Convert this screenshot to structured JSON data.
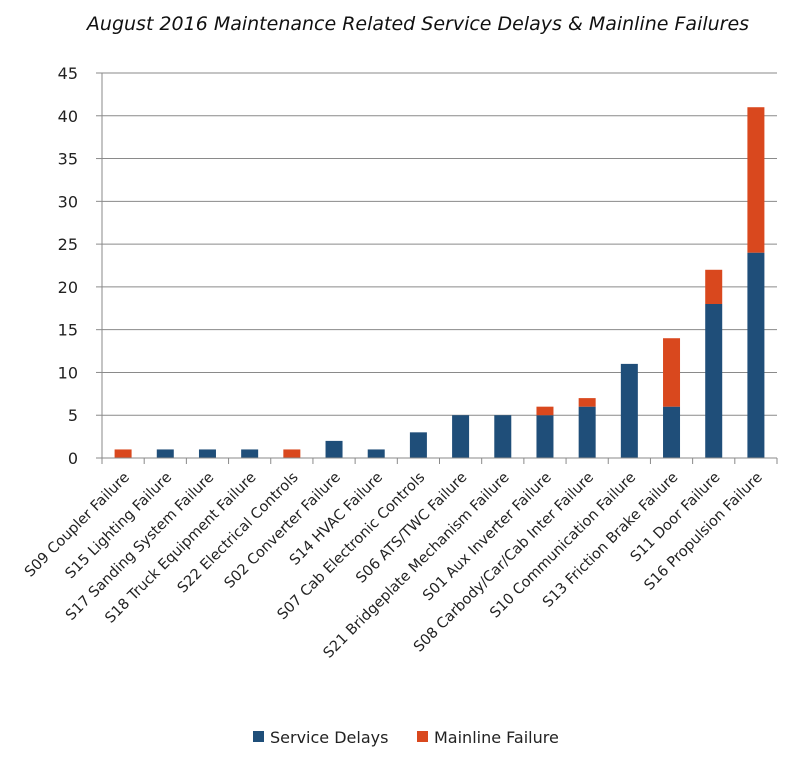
{
  "chart_data": {
    "type": "bar",
    "stacked": true,
    "title": "August 2016 Maintenance Related Service Delays & Mainline Failures",
    "xlabel": "",
    "ylabel": "",
    "ylim": [
      0,
      45
    ],
    "yticks": [
      0,
      5,
      10,
      15,
      20,
      25,
      30,
      35,
      40,
      45
    ],
    "grid": true,
    "legend": "bottom",
    "categories": [
      "S09 Coupler Failure",
      "S15 Lighting Failure",
      "S17 Sanding System Failure",
      "S18 Truck Equipment Failure",
      "S22 Electrical Controls",
      "S02 Converter Failure",
      "S14 HVAC Failure",
      "S07 Cab Electronic Controls",
      "S06 ATS/TWC Failure",
      "S21 Bridgeplate Mechanism Failure",
      "S01 Aux Inverter Failure",
      "S08 Carbody/Car/Cab Inter Failure",
      "S10 Communication Failure",
      "S13 Friction Brake Failure",
      "S11 Door Failure",
      "S16 Propulsion Failure"
    ],
    "series": [
      {
        "name": "Service Delays",
        "color": "#1f4e79",
        "values": [
          0,
          1,
          1,
          1,
          0,
          2,
          1,
          3,
          5,
          5,
          5,
          6,
          11,
          6,
          18,
          24
        ]
      },
      {
        "name": "Mainline Failure",
        "color": "#d9481e",
        "values": [
          1,
          0,
          0,
          0,
          1,
          0,
          0,
          0,
          0,
          0,
          1,
          1,
          0,
          8,
          4,
          17
        ]
      }
    ]
  }
}
